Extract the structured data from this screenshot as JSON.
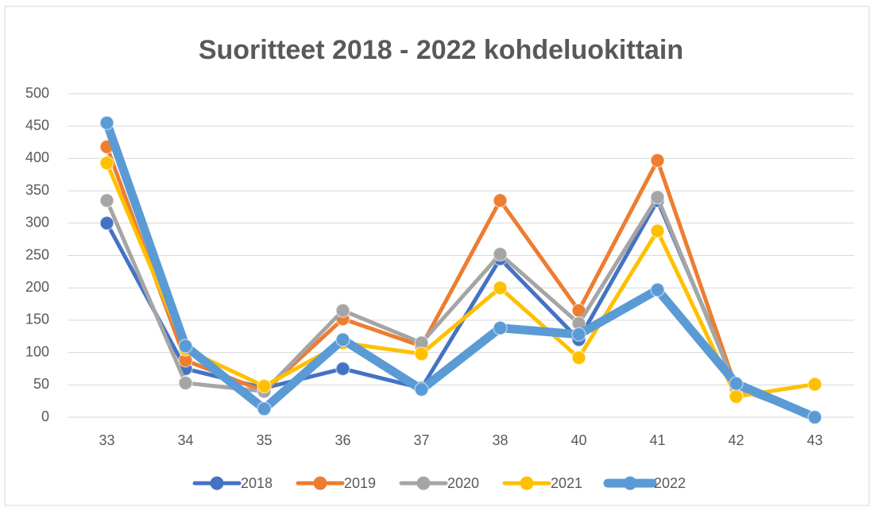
{
  "chart_data": {
    "type": "line",
    "title": "Suoritteet 2018 - 2022 kohdeluokittain",
    "categories": [
      "33",
      "34",
      "35",
      "36",
      "37",
      "38",
      "40",
      "41",
      "42",
      "43"
    ],
    "series": [
      {
        "name": "2018",
        "color": "#4472c4",
        "values": [
          300,
          75,
          45,
          75,
          45,
          245,
          120,
          335,
          50,
          0
        ]
      },
      {
        "name": "2019",
        "color": "#ed7d31",
        "values": [
          418,
          88,
          40,
          152,
          110,
          335,
          165,
          397,
          45,
          0
        ]
      },
      {
        "name": "2020",
        "color": "#a5a5a5",
        "values": [
          335,
          53,
          40,
          165,
          115,
          252,
          145,
          340,
          45,
          0
        ]
      },
      {
        "name": "2021",
        "color": "#ffc000",
        "values": [
          393,
          105,
          48,
          115,
          98,
          200,
          92,
          288,
          32,
          51
        ]
      },
      {
        "name": "2022",
        "color": "#5b9bd5",
        "values": [
          455,
          110,
          13,
          120,
          43,
          138,
          128,
          197,
          52,
          0
        ]
      }
    ],
    "ylim": [
      0,
      500
    ],
    "yticks": [
      0,
      50,
      100,
      150,
      200,
      250,
      300,
      350,
      400,
      450,
      500
    ],
    "grid": true,
    "legend": "bottom"
  }
}
